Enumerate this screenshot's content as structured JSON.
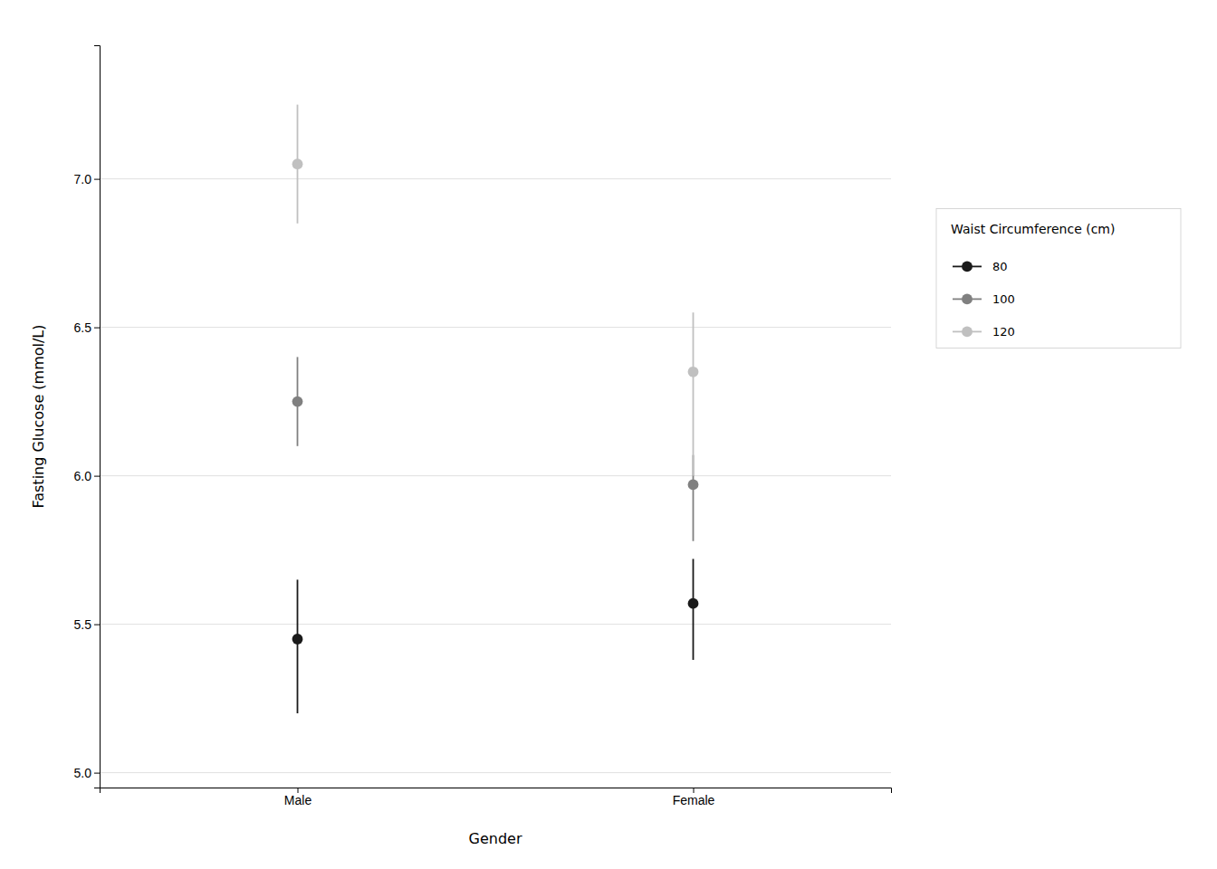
{
  "chart_data": {
    "type": "scatter",
    "xlabel": "Gender",
    "ylabel": "Fasting Glucose (mmol/L)",
    "legend_title": "Waist Circumference (cm)",
    "categories": [
      "Male",
      "Female"
    ],
    "series": [
      {
        "name": "80",
        "color": "#1a1a1a",
        "values": [
          5.45,
          5.57
        ],
        "lower": [
          5.2,
          5.38
        ],
        "upper": [
          5.65,
          5.72
        ]
      },
      {
        "name": "100",
        "color": "#808080",
        "values": [
          6.25,
          5.97
        ],
        "lower": [
          6.1,
          5.78
        ],
        "upper": [
          6.4,
          6.07
        ]
      },
      {
        "name": "120",
        "color": "#c0c0c0",
        "values": [
          7.05,
          6.35
        ],
        "lower": [
          6.85,
          6.0
        ],
        "upper": [
          7.25,
          6.55
        ]
      }
    ],
    "ylim": [
      4.95,
      7.45
    ],
    "yticks": [
      {
        "value": 5.0,
        "label": "5.0"
      },
      5.5,
      {
        "value": 6.0,
        "label": "6.0"
      },
      6.5,
      {
        "value": 7.0,
        "label": "7.0"
      }
    ],
    "grid": true,
    "legend": "right",
    "marker": "circle"
  }
}
